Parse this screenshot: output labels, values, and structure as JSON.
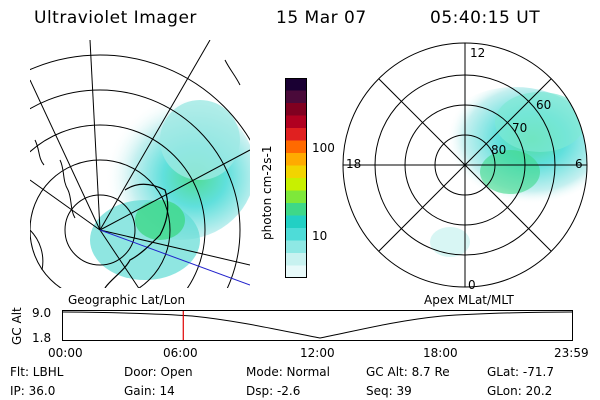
{
  "header": {
    "instrument": "Ultraviolet Imager",
    "date": "15 Mar 07",
    "time": "05:40:15 UT"
  },
  "colorbar": {
    "unit_label": "photon cm-2s-1",
    "ticks": [
      "100",
      "10"
    ],
    "colors": [
      "#1a0033",
      "#4a0a3a",
      "#800020",
      "#b00020",
      "#e02020",
      "#ff6a00",
      "#ffaa00",
      "#f2d400",
      "#c8f000",
      "#7ee83a",
      "#3ed888",
      "#22d0c4",
      "#4edcd8",
      "#8ee8e4",
      "#c8f2f0",
      "#e8fafa"
    ]
  },
  "left_map": {
    "title": "Geographic Lat/Lon"
  },
  "right_map": {
    "title": "Apex MLat/MLT",
    "mlt_labels": {
      "top": "12",
      "left": "18",
      "right": "6",
      "bottom": "0"
    },
    "lat_labels": [
      "60",
      "70",
      "80"
    ]
  },
  "timeline": {
    "axis_label": "GC Alt",
    "y_ticks": [
      "9.0",
      "1.8"
    ],
    "x_ticks": [
      "00:00",
      "06:00",
      "12:00",
      "18:00",
      "23:59"
    ],
    "current_time_fraction": 0.2363
  },
  "status": {
    "flt": "Flt: LBHL",
    "ip": "IP: 36.0",
    "door": "Door: Open",
    "gain": "Gain: 14",
    "mode": "Mode: Normal",
    "dsp": "Dsp:    -2.6",
    "gc_alt": "GC Alt: 8.7 Re",
    "seq": "Seq: 39",
    "glat": "GLat: -71.7",
    "glon": "GLon:  20.2"
  }
}
